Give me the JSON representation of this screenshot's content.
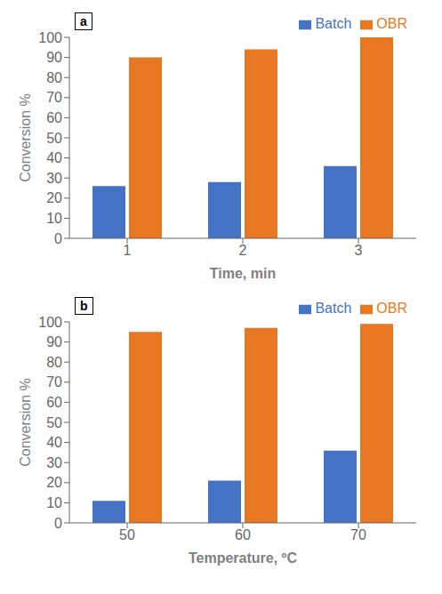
{
  "chart_data": [
    {
      "type": "bar",
      "categories": [
        "1",
        "2",
        "3"
      ],
      "series": [
        {
          "name": "Batch",
          "color": "#4472C4",
          "values": [
            26,
            28,
            36
          ]
        },
        {
          "name": "OBR",
          "color": "#E87722",
          "values": [
            90,
            94,
            100
          ]
        }
      ],
      "x_label": "Time, min",
      "y_label": "Conversion %",
      "annotations": [
        "a"
      ],
      "ylim": [
        0,
        100
      ],
      "yticks": [
        0,
        10,
        20,
        30,
        40,
        50,
        60,
        70,
        80,
        90,
        100
      ],
      "grid": false,
      "legend": "upper right"
    },
    {
      "type": "bar",
      "categories": [
        "50",
        "60",
        "70"
      ],
      "series": [
        {
          "name": "Batch",
          "color": "#4472C4",
          "values": [
            11,
            21,
            36
          ]
        },
        {
          "name": "OBR",
          "color": "#E87722",
          "values": [
            95,
            97,
            99
          ]
        }
      ],
      "x_label": "Temperature, ºC",
      "y_label": "Conversion %",
      "annotations": [
        "b"
      ],
      "ylim": [
        0,
        100
      ],
      "yticks": [
        0,
        10,
        20,
        30,
        40,
        50,
        60,
        70,
        80,
        90,
        100
      ],
      "grid": false,
      "legend": "upper right"
    }
  ]
}
